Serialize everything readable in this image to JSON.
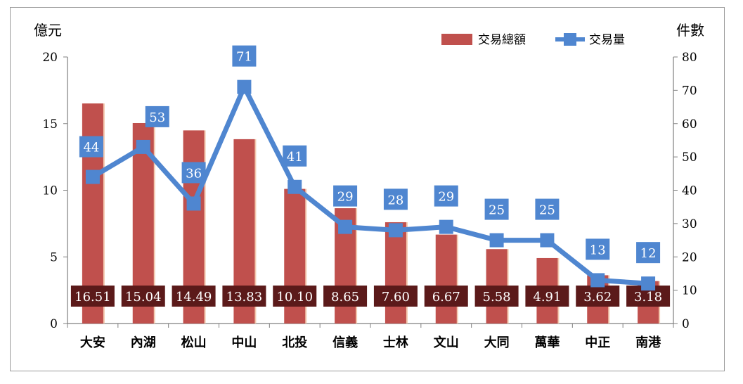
{
  "chart_data": {
    "type": "bar",
    "left_axis_title": "億元",
    "right_axis_title": "件數",
    "categories": [
      "大安",
      "內湖",
      "松山",
      "中山",
      "北投",
      "信義",
      "士林",
      "文山",
      "大同",
      "萬華",
      "中正",
      "南港"
    ],
    "series": [
      {
        "name": "交易總額",
        "type": "bar",
        "axis": "left",
        "color": "#c0504d",
        "values": [
          16.51,
          15.04,
          14.49,
          13.83,
          10.1,
          8.65,
          7.6,
          6.67,
          5.58,
          4.91,
          3.62,
          3.18
        ],
        "labels": [
          "16.51",
          "15.04",
          "14.49",
          "13.83",
          "10.10",
          "8.65",
          "7.60",
          "6.67",
          "5.58",
          "4.91",
          "3.62",
          "3.18"
        ]
      },
      {
        "name": "交易量",
        "type": "line",
        "axis": "right",
        "color": "#4f86d0",
        "values": [
          44,
          53,
          36,
          71,
          41,
          29,
          28,
          29,
          25,
          25,
          13,
          12
        ],
        "labels": [
          "44",
          "53",
          "36",
          "71",
          "41",
          "29",
          "28",
          "29",
          "25",
          "25",
          "13",
          "12"
        ]
      }
    ],
    "ylim_left": [
      0,
      20
    ],
    "yticks_left": [
      "0",
      "5",
      "10",
      "15",
      "20"
    ],
    "ylim_right": [
      0,
      80
    ],
    "yticks_right": [
      "0",
      "10",
      "20",
      "30",
      "40",
      "50",
      "60",
      "70",
      "80"
    ],
    "legend_position": "top-right",
    "bar_label_color": "#5b1a1a",
    "grid": false
  }
}
